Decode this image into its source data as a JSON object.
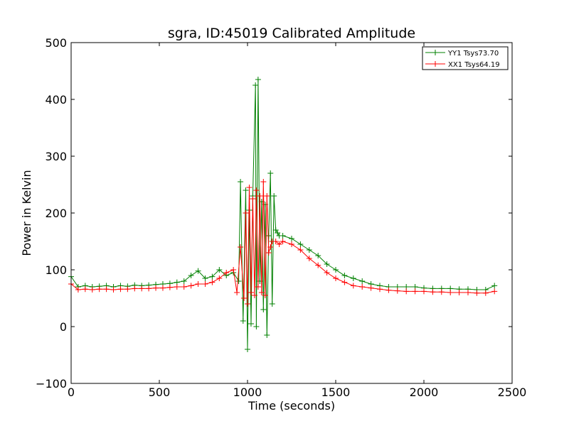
{
  "chart_data": {
    "type": "line",
    "title": "sgra, ID:45019 Calibrated Amplitude",
    "xlabel": "Time (seconds)",
    "ylabel": "Power in Kelvin",
    "xlim": [
      0,
      2500
    ],
    "ylim": [
      -100,
      500
    ],
    "xticks": [
      0,
      500,
      1000,
      1500,
      2000,
      2500
    ],
    "xtick_labels": [
      "0",
      "500",
      "1000",
      "1500",
      "2000",
      "2500"
    ],
    "yticks": [
      -100,
      0,
      100,
      200,
      300,
      400,
      500
    ],
    "ytick_labels": [
      "−100",
      "0",
      "100",
      "200",
      "300",
      "400",
      "500"
    ],
    "grid": false,
    "legend_position": "top-right",
    "marker": "+",
    "series": [
      {
        "name": "YY1 Tsys73.70",
        "color": "#008000",
        "x": [
          0,
          40,
          80,
          120,
          160,
          200,
          240,
          280,
          320,
          360,
          400,
          440,
          480,
          520,
          560,
          600,
          640,
          680,
          720,
          760,
          800,
          840,
          880,
          920,
          950,
          960,
          975,
          990,
          1000,
          1010,
          1020,
          1030,
          1045,
          1050,
          1060,
          1070,
          1080,
          1090,
          1100,
          1110,
          1120,
          1130,
          1140,
          1150,
          1160,
          1170,
          1180,
          1200,
          1250,
          1300,
          1350,
          1400,
          1450,
          1500,
          1550,
          1600,
          1650,
          1700,
          1750,
          1800,
          1850,
          1900,
          1950,
          2000,
          2050,
          2100,
          2150,
          2200,
          2250,
          2300,
          2350,
          2400
        ],
        "y": [
          88,
          70,
          72,
          70,
          71,
          72,
          70,
          72,
          71,
          73,
          72,
          73,
          74,
          75,
          76,
          78,
          80,
          90,
          98,
          85,
          88,
          100,
          90,
          95,
          80,
          255,
          10,
          240,
          -40,
          205,
          5,
          230,
          425,
          0,
          435,
          80,
          220,
          30,
          215,
          -15,
          160,
          270,
          40,
          230,
          170,
          165,
          160,
          160,
          155,
          145,
          135,
          125,
          110,
          100,
          90,
          85,
          80,
          75,
          72,
          70,
          70,
          70,
          70,
          68,
          67,
          67,
          67,
          66,
          66,
          65,
          65,
          72
        ]
      },
      {
        "name": "XX1 Tsys64.19",
        "color": "#ff0000",
        "x": [
          0,
          40,
          80,
          120,
          160,
          200,
          240,
          280,
          320,
          360,
          400,
          440,
          480,
          520,
          560,
          600,
          640,
          680,
          720,
          760,
          800,
          840,
          880,
          920,
          940,
          960,
          980,
          990,
          1000,
          1010,
          1020,
          1030,
          1040,
          1050,
          1060,
          1070,
          1080,
          1090,
          1100,
          1110,
          1120,
          1130,
          1140,
          1160,
          1180,
          1200,
          1250,
          1300,
          1350,
          1400,
          1450,
          1500,
          1550,
          1600,
          1650,
          1700,
          1750,
          1800,
          1850,
          1900,
          1950,
          2000,
          2050,
          2100,
          2150,
          2200,
          2250,
          2300,
          2350,
          2400
        ],
        "y": [
          75,
          65,
          66,
          65,
          66,
          66,
          65,
          66,
          66,
          67,
          67,
          67,
          68,
          68,
          69,
          70,
          70,
          72,
          75,
          75,
          78,
          85,
          95,
          100,
          60,
          140,
          50,
          200,
          40,
          245,
          60,
          225,
          55,
          240,
          70,
          230,
          60,
          255,
          55,
          230,
          130,
          140,
          150,
          150,
          145,
          150,
          145,
          135,
          120,
          108,
          95,
          85,
          78,
          72,
          70,
          68,
          66,
          64,
          63,
          62,
          62,
          62,
          61,
          61,
          60,
          60,
          60,
          59,
          59,
          62
        ]
      }
    ]
  }
}
